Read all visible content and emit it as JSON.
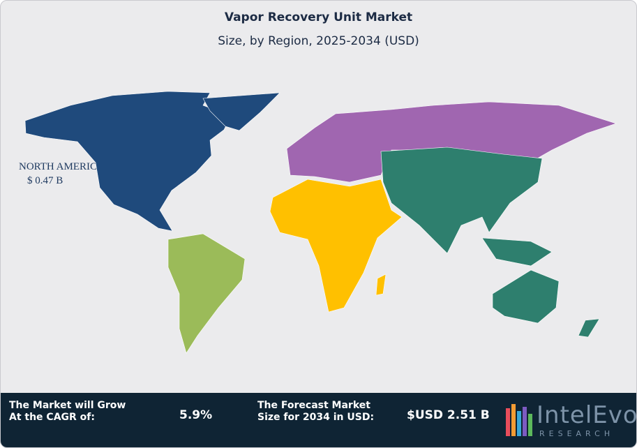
{
  "header": {
    "title": "Vapor Recovery Unit Market",
    "subtitle": "Size, by Region, 2025-2034 (USD)"
  },
  "map": {
    "regions": [
      {
        "color": "#1f4a7c"
      },
      {
        "color": "#9bbb59"
      },
      {
        "color": "#ffc000"
      },
      {
        "color": "#a066b0"
      },
      {
        "color": "#2e7f6e"
      }
    ],
    "label": {
      "region": "NORTH AMERICA",
      "value": "$ 0.47 B"
    }
  },
  "footer": {
    "stats": [
      {
        "label": "The Market will Grow At the CAGR of:",
        "value": "5.9%"
      },
      {
        "label": "The Forecast Market Size for 2034 in USD:",
        "value": "$USD 2.51 B"
      }
    ],
    "logo": {
      "brand": "IntelEvo",
      "tagline": "RESEARCH"
    }
  }
}
